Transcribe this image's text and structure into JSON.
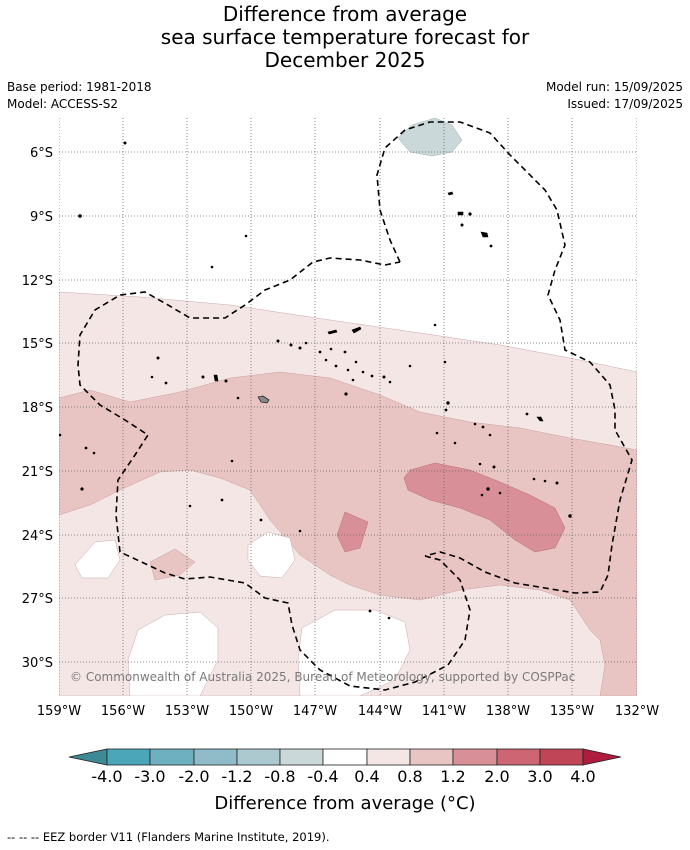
{
  "title_lines": [
    "Difference from average",
    "sea surface temperature forecast for",
    "December 2025"
  ],
  "base_period": "Base period: 1981-2018",
  "model": "Model: ACCESS-S2",
  "model_run": "Model run: 15/09/2025",
  "issued": "Issued: 17/09/2025",
  "copyright": "© Commonwealth of Australia 2025, Bureau of Meteorology, supported by COSPPac",
  "lat_labels": [
    "6°S",
    "9°S",
    "12°S",
    "15°S",
    "18°S",
    "21°S",
    "24°S",
    "27°S",
    "30°S"
  ],
  "lon_labels": [
    "159°W",
    "156°W",
    "153°W",
    "150°W",
    "147°W",
    "144°W",
    "141°W",
    "138°W",
    "135°W",
    "132°W"
  ],
  "colorbar": {
    "ticks": [
      "-4.0",
      "-3.0",
      "-2.0",
      "-1.2",
      "-0.8",
      "-0.4",
      "0.4",
      "0.8",
      "1.2",
      "2.0",
      "3.0",
      "4.0"
    ],
    "colors": [
      "#3d8a96",
      "#4aa6b8",
      "#6eb0c0",
      "#8fbcc8",
      "#abc9ce",
      "#cbd8da",
      "#ffffff",
      "#f5e6e6",
      "#e8c5c3",
      "#d88f97",
      "#cd6573",
      "#c04556",
      "#b01c3d"
    ],
    "title": "Difference from average (°C)"
  },
  "footnote": "-- -- -- EEZ border V11 (Flanders Marine Institute, 2019)."
}
